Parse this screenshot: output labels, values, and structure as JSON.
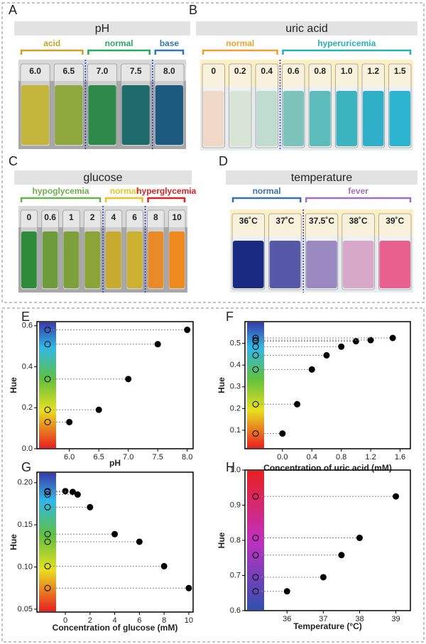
{
  "figure_panels": [
    {
      "letter": "A",
      "title": "pH",
      "groups": [
        {
          "label": "acid",
          "color": "#c9a227"
        },
        {
          "label": "normal",
          "color": "#2aa860"
        },
        {
          "label": "base",
          "color": "#2e78b8"
        }
      ],
      "vials": [
        {
          "label": "6.0",
          "color": "#c4b63c"
        },
        {
          "label": "6.5",
          "color": "#8fa83e"
        },
        {
          "label": "7.0",
          "color": "#2d8a4a"
        },
        {
          "label": "7.5",
          "color": "#1f6a6a"
        },
        {
          "label": "8.0",
          "color": "#1d5a80"
        }
      ]
    },
    {
      "letter": "B",
      "title": "uric acid",
      "groups": [
        {
          "label": "normal",
          "color": "#f0a030"
        },
        {
          "label": "hyperuricemia",
          "color": "#28b0b8"
        }
      ],
      "vials": [
        {
          "label": "0",
          "color": "#f0d8c8"
        },
        {
          "label": "0.2",
          "color": "#d8e4d6"
        },
        {
          "label": "0.4",
          "color": "#c0dcd0"
        },
        {
          "label": "0.6",
          "color": "#7cc4bc"
        },
        {
          "label": "0.8",
          "color": "#5cbcbc"
        },
        {
          "label": "1.0",
          "color": "#3cb4c0"
        },
        {
          "label": "1.2",
          "color": "#30b0c8"
        },
        {
          "label": "1.5",
          "color": "#2cb4d0"
        }
      ]
    },
    {
      "letter": "C",
      "title": "glucose",
      "groups": [
        {
          "label": "hypoglycemia",
          "color": "#6ab04c"
        },
        {
          "label": "normal",
          "color": "#f0c020"
        },
        {
          "label": "hyperglycemia",
          "color": "#e02020"
        }
      ],
      "vials": [
        {
          "label": "0",
          "color": "#2f8a3a"
        },
        {
          "label": "0.6",
          "color": "#6e9c3a"
        },
        {
          "label": "1",
          "color": "#7ea03a"
        },
        {
          "label": "2",
          "color": "#8aa43a"
        },
        {
          "label": "4",
          "color": "#c8aa30"
        },
        {
          "label": "6",
          "color": "#ccb030"
        },
        {
          "label": "8",
          "color": "#e88a28"
        },
        {
          "label": "10",
          "color": "#ee8a20"
        }
      ]
    },
    {
      "letter": "D",
      "title": "temperature",
      "groups": [
        {
          "label": "normal",
          "color": "#3a70b0"
        },
        {
          "label": "fever",
          "color": "#a070c0"
        }
      ],
      "vials": [
        {
          "label": "36˚C",
          "color": "#1a2a80"
        },
        {
          "label": "37˚C",
          "color": "#5858a8"
        },
        {
          "label": "37.5˚C",
          "color": "#9a88c0"
        },
        {
          "label": "38˚C",
          "color": "#d8a8c8"
        },
        {
          "label": "39˚C",
          "color": "#e8608e"
        }
      ]
    }
  ],
  "chart_data": [
    {
      "type": "scatter",
      "panel": "E",
      "xlabel": "pH",
      "ylabel": "Hue",
      "color": "#000000",
      "x": [
        6.0,
        6.5,
        7.0,
        7.5,
        8.0
      ],
      "values": [
        0.13,
        0.19,
        0.34,
        0.51,
        0.58
      ],
      "xlim": [
        5.45,
        8.1
      ],
      "ylim": [
        0,
        0.62
      ],
      "xticks": [
        {
          "value": 6,
          "label": "6.0"
        },
        6.5,
        {
          "value": 7,
          "label": "7.0"
        },
        7.5,
        {
          "value": 8,
          "label": "8.0"
        }
      ],
      "yticks": [
        {
          "value": 0,
          "label": "0.0"
        },
        0.2,
        0.4,
        0.6
      ]
    },
    {
      "type": "scatter",
      "panel": "F",
      "xlabel": "Concentration of uric acid (mM)",
      "ylabel": "Hue",
      "color": "#000000",
      "x": [
        0,
        0.2,
        0.4,
        0.6,
        0.8,
        1.0,
        1.2,
        1.5
      ],
      "values": [
        0.085,
        0.22,
        0.38,
        0.445,
        0.485,
        0.51,
        0.515,
        0.525
      ],
      "errors": [
        0.005,
        0.01,
        0.015,
        0.008,
        0.006,
        0.006,
        0.005,
        0.005
      ],
      "xlim": [
        -0.51,
        1.74
      ],
      "ylim": [
        0.015,
        0.6
      ],
      "xticks": [
        {
          "value": 0,
          "label": "0.0"
        },
        0.4,
        0.8,
        1.2,
        1.6
      ],
      "yticks": [
        0.1,
        0.2,
        0.3,
        0.4,
        0.5
      ]
    },
    {
      "type": "scatter",
      "panel": "G",
      "xlabel": "Concentration of glucose (mM)",
      "ylabel": "Hue",
      "color": "#000000",
      "x": [
        0,
        0.6,
        1,
        2,
        4,
        6,
        8,
        10
      ],
      "values": [
        0.19,
        0.189,
        0.186,
        0.171,
        0.139,
        0.13,
        0.101,
        0.075
      ],
      "xlim": [
        -2.3,
        10.35
      ],
      "ylim": [
        0.0466,
        0.2125
      ],
      "xticks": [
        0,
        2,
        4,
        6,
        8,
        10
      ],
      "yticks": [
        0.05,
        {
          "value": 0.1,
          "label": "0.10"
        },
        0.15,
        {
          "value": 0.2,
          "label": "0.20"
        }
      ]
    },
    {
      "type": "scatter",
      "panel": "H",
      "xlabel": "Temperature (°C)",
      "ylabel": "Hue",
      "color": "#000000",
      "x": [
        36,
        37,
        37.5,
        38,
        39
      ],
      "values": [
        0.655,
        0.695,
        0.758,
        0.807,
        0.925
      ],
      "xlim": [
        34.84,
        39.4
      ],
      "ylim": [
        0.6,
        1.0
      ],
      "xticks": [
        36,
        37,
        38,
        39
      ],
      "yticks": [
        0.6,
        0.7,
        0.8,
        0.9,
        {
          "value": 1,
          "label": "1.0"
        }
      ]
    }
  ]
}
